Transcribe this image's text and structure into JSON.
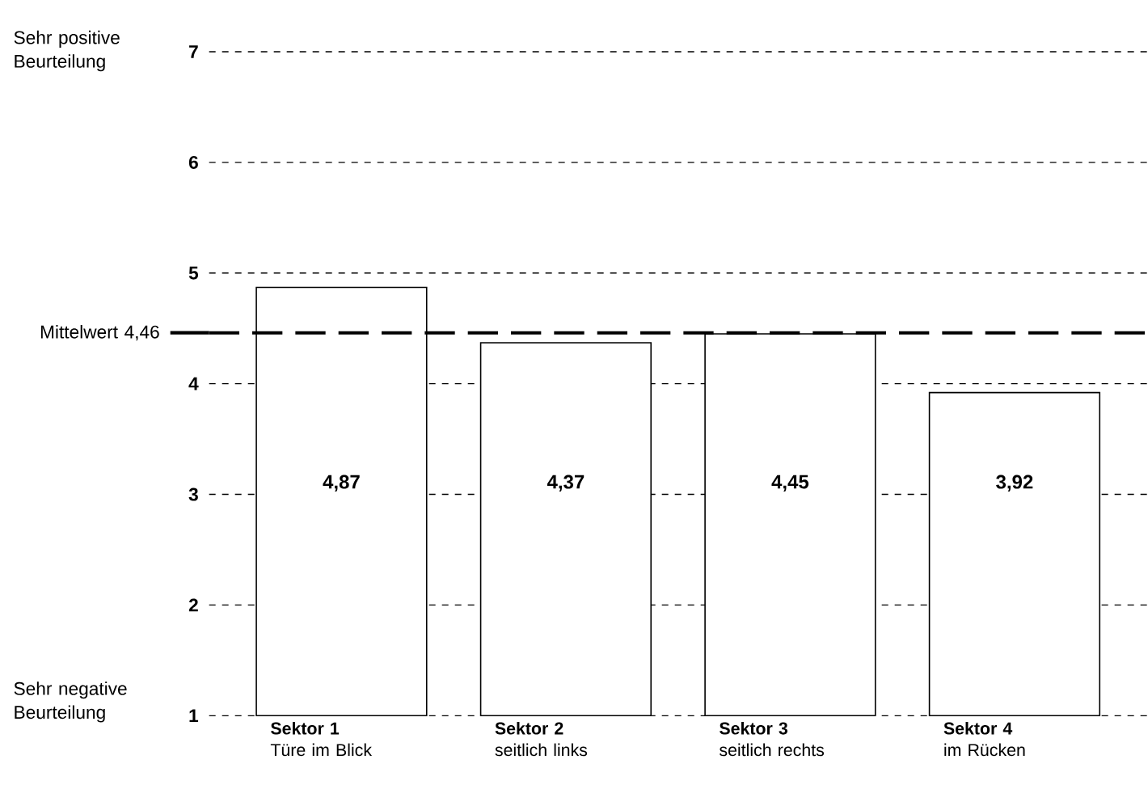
{
  "chart_data": {
    "type": "bar",
    "categories": [
      "**Sektor 1**\nTüre im Blick",
      "**Sektor 2**\nseitlich links",
      "**Sektor 3**\nseitlich rechts",
      "**Sektor 4**\nim Rücken"
    ],
    "values": [
      4.87,
      4.37,
      4.45,
      3.92
    ],
    "value_labels": [
      "4,87",
      "4,37",
      "4,45",
      "3,92"
    ],
    "color": "#ffffff",
    "ylim": [
      1,
      7
    ],
    "yticks": [
      1,
      2,
      3,
      4,
      5,
      6,
      7
    ],
    "grid": "y",
    "ref_lines": [
      {
        "axis": "y",
        "value": 4.46,
        "label": "Mittelwert 4,46",
        "line_style": "dashed",
        "color": "#000000"
      }
    ],
    "annotations": [
      "Sehr positive\nBeurteilung",
      "Sehr negative\nBeurteilung"
    ]
  }
}
